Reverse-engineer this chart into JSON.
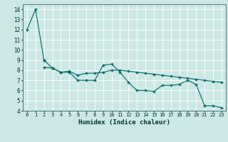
{
  "xlabel": "Humidex (Indice chaleur)",
  "xlim": [
    -0.5,
    23.5
  ],
  "ylim": [
    4,
    14.5
  ],
  "yticks": [
    4,
    5,
    6,
    7,
    8,
    9,
    10,
    11,
    12,
    13,
    14
  ],
  "xticks": [
    0,
    1,
    2,
    3,
    4,
    5,
    6,
    7,
    8,
    9,
    10,
    11,
    12,
    13,
    14,
    15,
    16,
    17,
    18,
    19,
    20,
    21,
    22,
    23
  ],
  "bg_color": "#cce8e4",
  "grid_color": "#ffffff",
  "line_color": "#006666",
  "series1_x": [
    0,
    1,
    2
  ],
  "series1_y": [
    12,
    14,
    9
  ],
  "series2_x": [
    2,
    3,
    4,
    5,
    6,
    7,
    8,
    9,
    10,
    11,
    12,
    13,
    14,
    15,
    16,
    17,
    18,
    19,
    20,
    21,
    22,
    23
  ],
  "series2_y": [
    9.0,
    8.2,
    7.8,
    7.8,
    7.0,
    7.0,
    7.0,
    8.5,
    8.6,
    7.8,
    6.8,
    6.0,
    6.0,
    5.9,
    6.5,
    6.5,
    6.6,
    7.0,
    6.6,
    4.5,
    4.5,
    4.3
  ],
  "series3_x": [
    2,
    3,
    4,
    5,
    6,
    7,
    8,
    9,
    10,
    11,
    12,
    13,
    14,
    15,
    16,
    17,
    18,
    19,
    20,
    21,
    22,
    23
  ],
  "series3_y": [
    8.3,
    8.2,
    7.8,
    7.9,
    7.5,
    7.7,
    7.7,
    7.8,
    8.0,
    8.0,
    7.9,
    7.8,
    7.7,
    7.6,
    7.5,
    7.4,
    7.3,
    7.2,
    7.1,
    7.0,
    6.9,
    6.8
  ],
  "tick_fontsize": 5.0,
  "xlabel_fontsize": 6.5,
  "line_width": 0.8,
  "marker_size": 2.5
}
